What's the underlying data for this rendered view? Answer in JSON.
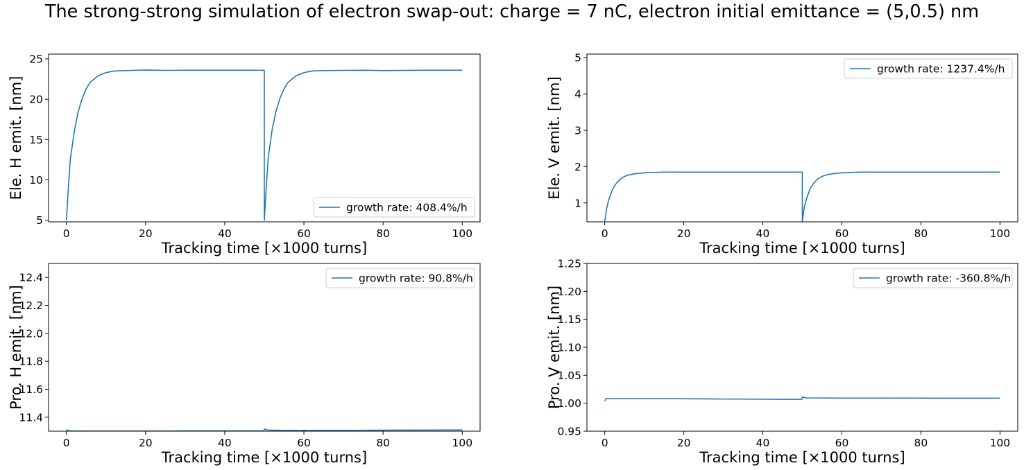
{
  "suptitle": "The strong-strong simulation of electron swap-out: charge = 7 nC, electron initial emittance = (5,0.5) nm",
  "colors": {
    "series": "#1f77b4",
    "background": "#ffffff",
    "axes": "#000000",
    "legend_border": "#cccccc"
  },
  "chart_data": [
    {
      "type": "line",
      "xlabel": "Tracking time [×1000 turns]",
      "ylabel": "Ele. H emit. [nm]",
      "xlim": [
        -4.5,
        104.5
      ],
      "ylim": [
        4.8,
        25.6
      ],
      "xticks": [
        0,
        20,
        40,
        60,
        80,
        100
      ],
      "yticks": [
        5,
        10,
        15,
        20,
        25
      ],
      "legend_loc": "lower right",
      "series": [
        {
          "name": "growth rate: 408.4%/h",
          "x": [
            0,
            0.5,
            1,
            2,
            3,
            4,
            5,
            6,
            8,
            10,
            12,
            15,
            20,
            25,
            30,
            40,
            49.99,
            50,
            50.5,
            51,
            52,
            53,
            54,
            55,
            56,
            58,
            60,
            62,
            65,
            70,
            75,
            80,
            90,
            100
          ],
          "y": [
            5.0,
            9.0,
            12.6,
            16.0,
            18.5,
            20.1,
            21.3,
            22.1,
            22.9,
            23.3,
            23.5,
            23.55,
            23.62,
            23.58,
            23.6,
            23.6,
            23.6,
            5.0,
            9.2,
            12.8,
            16.3,
            18.6,
            20.2,
            21.3,
            22.1,
            22.9,
            23.3,
            23.5,
            23.55,
            23.58,
            23.6,
            23.55,
            23.6,
            23.6
          ]
        }
      ]
    },
    {
      "type": "line",
      "xlabel": "Tracking time [×1000 turns]",
      "ylabel": "Ele. V emit. [nm]",
      "xlim": [
        -4.5,
        104.5
      ],
      "ylim": [
        0.48,
        5.1
      ],
      "xticks": [
        0,
        20,
        40,
        60,
        80,
        100
      ],
      "yticks": [
        1,
        2,
        3,
        4,
        5
      ],
      "legend_loc": "upper right",
      "series": [
        {
          "name": "growth rate: 1237.4%/h",
          "x": [
            0,
            0.5,
            1,
            2,
            3,
            4,
            5,
            6,
            8,
            10,
            12,
            15,
            20,
            30,
            40,
            49.99,
            50,
            50.5,
            51,
            52,
            53,
            54,
            55,
            56,
            58,
            60,
            62,
            65,
            70,
            80,
            90,
            100
          ],
          "y": [
            0.5,
            0.85,
            1.08,
            1.38,
            1.55,
            1.66,
            1.73,
            1.77,
            1.81,
            1.83,
            1.84,
            1.85,
            1.85,
            1.85,
            1.85,
            1.85,
            0.5,
            0.88,
            1.1,
            1.4,
            1.56,
            1.67,
            1.73,
            1.77,
            1.81,
            1.83,
            1.84,
            1.85,
            1.85,
            1.85,
            1.85,
            1.85
          ]
        }
      ]
    },
    {
      "type": "line",
      "xlabel": "Tracking time [×1000 turns]",
      "ylabel": "Pro. H emit. [nm]",
      "xlim": [
        -4.5,
        104.5
      ],
      "ylim": [
        11.3,
        12.5
      ],
      "xticks": [
        0,
        20,
        40,
        60,
        80,
        100
      ],
      "yticks": [
        11.4,
        11.6,
        11.8,
        12.0,
        12.2,
        12.4
      ],
      "legend_loc": "upper right",
      "series": [
        {
          "name": "growth rate: 90.8%/h",
          "x": [
            0,
            0.3,
            1,
            5,
            10,
            20,
            30,
            40,
            49.9,
            50,
            51,
            55,
            60,
            70,
            80,
            90,
            100
          ],
          "y": [
            11.312,
            11.305,
            11.302,
            11.301,
            11.301,
            11.301,
            11.302,
            11.302,
            11.303,
            11.315,
            11.308,
            11.306,
            11.306,
            11.306,
            11.307,
            11.308,
            11.309
          ]
        }
      ]
    },
    {
      "type": "line",
      "xlabel": "Tracking time [×1000 turns]",
      "ylabel": "Pro. V emit. [nm]",
      "xlim": [
        -4.5,
        104.5
      ],
      "ylim": [
        0.95,
        1.25
      ],
      "xticks": [
        0,
        20,
        40,
        60,
        80,
        100
      ],
      "yticks": [
        0.95,
        1.0,
        1.05,
        1.1,
        1.15,
        1.2,
        1.25
      ],
      "legend_loc": "upper right",
      "series": [
        {
          "name": "growth rate: -360.8%/h",
          "x": [
            0,
            0.3,
            1,
            10,
            20,
            30,
            40,
            45,
            49.9,
            50,
            51,
            60,
            70,
            80,
            90,
            100
          ],
          "y": [
            1.004,
            1.008,
            1.008,
            1.008,
            1.008,
            1.0075,
            1.0072,
            1.007,
            1.007,
            1.011,
            1.0095,
            1.0092,
            1.0092,
            1.0091,
            1.009,
            1.009
          ]
        }
      ]
    }
  ]
}
